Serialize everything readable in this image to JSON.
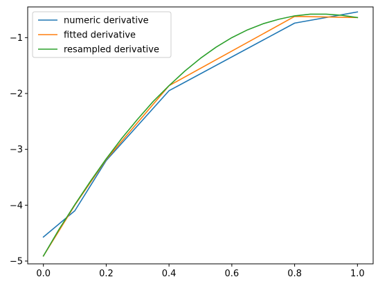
{
  "chart_data": {
    "type": "line",
    "title": "",
    "xlabel": "",
    "ylabel": "",
    "xlim": [
      -0.05,
      1.05
    ],
    "ylim": [
      -5.05,
      -0.45
    ],
    "xticks": [
      0.0,
      0.2,
      0.4,
      0.6,
      0.8,
      1.0
    ],
    "xtick_labels": [
      "0.0",
      "0.2",
      "0.4",
      "0.6",
      "0.8",
      "1.0"
    ],
    "yticks": [
      -5,
      -4,
      -3,
      -2,
      -1
    ],
    "ytick_labels": [
      "−5",
      "−4",
      "−3",
      "−2",
      "−1"
    ],
    "grid": false,
    "legend_position": "upper-left",
    "series": [
      {
        "name": "numeric derivative",
        "color": "#1f77b4",
        "x": [
          0.0,
          0.1,
          0.2,
          0.4,
          0.8,
          1.0
        ],
        "y": [
          -4.57,
          -4.1,
          -3.2,
          -1.95,
          -0.74,
          -0.54
        ]
      },
      {
        "name": "fitted derivative",
        "color": "#ff7f0e",
        "x": [
          0.0,
          0.1,
          0.2,
          0.4,
          0.8,
          1.0
        ],
        "y": [
          -4.91,
          -4.0,
          -3.18,
          -1.86,
          -0.62,
          -0.64
        ]
      },
      {
        "name": "resampled derivative",
        "color": "#2ca02c",
        "x": [
          0.0,
          0.05,
          0.1,
          0.15,
          0.2,
          0.25,
          0.3,
          0.35,
          0.4,
          0.45,
          0.5,
          0.55,
          0.6,
          0.65,
          0.7,
          0.75,
          0.8,
          0.85,
          0.9,
          0.95,
          1.0
        ],
        "y": [
          -4.91,
          -4.43,
          -3.99,
          -3.57,
          -3.17,
          -2.8,
          -2.46,
          -2.14,
          -1.86,
          -1.6,
          -1.37,
          -1.17,
          -1.0,
          -0.86,
          -0.75,
          -0.67,
          -0.61,
          -0.58,
          -0.58,
          -0.6,
          -0.64
        ]
      }
    ]
  }
}
